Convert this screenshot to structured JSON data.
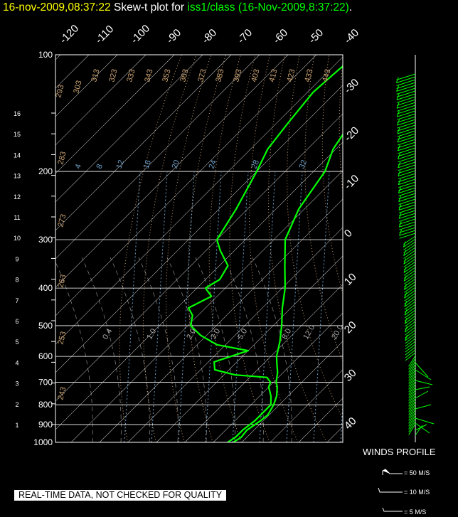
{
  "title": {
    "timestamp": "16-nov-2009,08:37:22",
    "plot_label": " Skew-t plot for ",
    "source": "iss1/class (16-Nov-2009,8:37:22)",
    "end": "."
  },
  "winds_profile_label": "WINDS PROFILE",
  "wind_legend": [
    "= 50 M/S",
    "= 10 M/S",
    "= 5 M/S"
  ],
  "quality_notice": "REAL-TIME DATA, NOT CHECKED FOR QUALITY",
  "colors": {
    "trace": "#00ff00",
    "title_time": "#ffff00",
    "isotherm": "#ffffff",
    "dry_adiabat": "#c8a070",
    "mixing_ratio": "#6fa0c8",
    "moist_adiabat": "#ffffff"
  },
  "chart_data": {
    "type": "line",
    "pressure_levels": [
      100,
      200,
      300,
      400,
      500,
      600,
      700,
      800,
      900,
      1000
    ],
    "height_km_ticks": [
      1,
      2,
      3,
      4,
      5,
      6,
      7,
      8,
      9,
      10,
      11,
      12,
      13,
      14,
      15,
      16
    ],
    "isotherm_top_labels": [
      "-120",
      "-110",
      "-100",
      "-90",
      "-80",
      "-70",
      "-60",
      "-50",
      "-40"
    ],
    "isotherm_right_labels": [
      "-30",
      "-20",
      "-10",
      "0",
      "10",
      "20",
      "30",
      "40"
    ],
    "dry_adiabat_labels": [
      "293",
      "303",
      "313",
      "323",
      "333",
      "343",
      "353",
      "363",
      "373",
      "383",
      "393",
      "403",
      "413",
      "423",
      "433",
      "443",
      "283",
      "273",
      "263",
      "253",
      "243"
    ],
    "mixing_ratio_labels": [
      "4",
      "8",
      "12",
      "16",
      "20",
      "24",
      "28",
      "32"
    ],
    "lower_labels": [
      "0.4",
      "1.0",
      "2.0",
      "3.0",
      "5.0",
      "8.0",
      "12.0",
      "20.0"
    ],
    "temperature": [
      {
        "p": 1000,
        "t": 7
      },
      {
        "p": 970,
        "t": 8
      },
      {
        "p": 930,
        "t": 7.5
      },
      {
        "p": 880,
        "t": 9
      },
      {
        "p": 850,
        "t": 9.5
      },
      {
        "p": 800,
        "t": 8
      },
      {
        "p": 760,
        "t": 6
      },
      {
        "p": 720,
        "t": 3
      },
      {
        "p": 700,
        "t": 1
      },
      {
        "p": 660,
        "t": -2
      },
      {
        "p": 630,
        "t": -5
      },
      {
        "p": 600,
        "t": -8
      },
      {
        "p": 550,
        "t": -12
      },
      {
        "p": 500,
        "t": -17
      },
      {
        "p": 450,
        "t": -23
      },
      {
        "p": 400,
        "t": -29
      },
      {
        "p": 350,
        "t": -37
      },
      {
        "p": 300,
        "t": -46
      },
      {
        "p": 250,
        "t": -52
      },
      {
        "p": 200,
        "t": -56
      },
      {
        "p": 175,
        "t": -61
      },
      {
        "p": 150,
        "t": -64
      },
      {
        "p": 125,
        "t": -68
      },
      {
        "p": 110,
        "t": -71
      },
      {
        "p": 100,
        "t": -73
      }
    ],
    "dewpoint": [
      {
        "p": 1000,
        "t": 5
      },
      {
        "p": 970,
        "t": 6
      },
      {
        "p": 930,
        "t": 6
      },
      {
        "p": 880,
        "t": 7
      },
      {
        "p": 850,
        "t": 7
      },
      {
        "p": 800,
        "t": 7
      },
      {
        "p": 760,
        "t": 4
      },
      {
        "p": 720,
        "t": 0
      },
      {
        "p": 700,
        "t": -1
      },
      {
        "p": 680,
        "t": -4
      },
      {
        "p": 670,
        "t": -16
      },
      {
        "p": 650,
        "t": -25
      },
      {
        "p": 620,
        "t": -28
      },
      {
        "p": 600,
        "t": -24
      },
      {
        "p": 580,
        "t": -20
      },
      {
        "p": 560,
        "t": -33
      },
      {
        "p": 530,
        "t": -42
      },
      {
        "p": 500,
        "t": -49
      },
      {
        "p": 470,
        "t": -52
      },
      {
        "p": 450,
        "t": -56
      },
      {
        "p": 420,
        "t": -52
      },
      {
        "p": 400,
        "t": -57
      },
      {
        "p": 380,
        "t": -55
      },
      {
        "p": 350,
        "t": -57
      },
      {
        "p": 320,
        "t": -65
      },
      {
        "p": 300,
        "t": -70
      },
      {
        "p": 250,
        "t": -74
      },
      {
        "p": 200,
        "t": -80
      },
      {
        "p": 175,
        "t": -84
      },
      {
        "p": 150,
        "t": -86
      },
      {
        "p": 125,
        "t": -88
      },
      {
        "p": 110,
        "t": -87
      },
      {
        "p": 100,
        "t": -86
      }
    ]
  }
}
